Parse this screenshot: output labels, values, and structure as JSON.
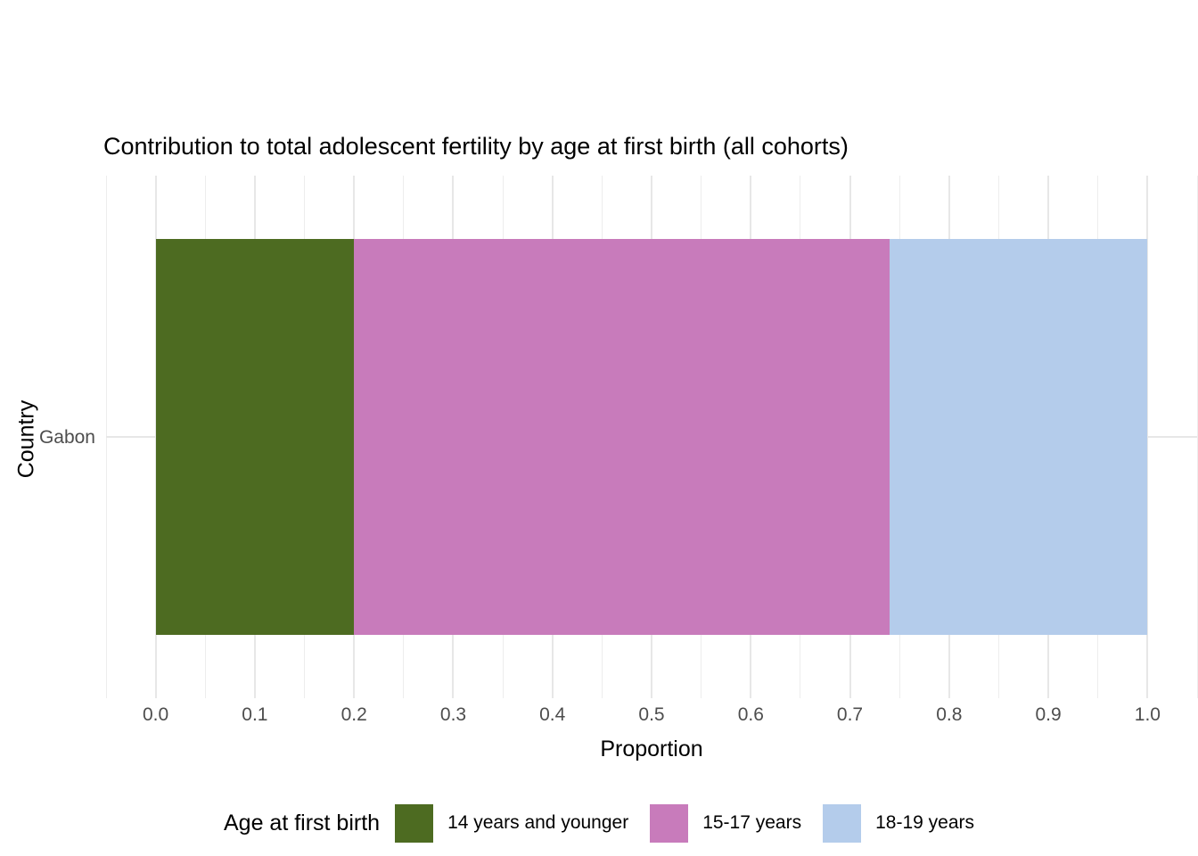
{
  "title": "Contribution to total adolescent fertility by age at first birth (all cohorts)",
  "chart_data": {
    "type": "bar",
    "orientation": "horizontal",
    "stacked": true,
    "title": "Contribution to total adolescent fertility by age at first birth (all cohorts)",
    "categories": [
      "Gabon"
    ],
    "series": [
      {
        "name": "14 years and younger",
        "color": "#4d6b21",
        "values": [
          0.2
        ]
      },
      {
        "name": "15-17 years",
        "color": "#c87bbb",
        "values": [
          0.54
        ]
      },
      {
        "name": "18-19 years",
        "color": "#b4cceb",
        "values": [
          0.26
        ]
      }
    ],
    "xlabel": "Proportion",
    "ylabel": "Country",
    "xlim": [
      -0.05,
      1.05
    ],
    "x_tick_values": [
      0.0,
      0.1,
      0.2,
      0.3,
      0.4,
      0.5,
      0.6,
      0.7,
      0.8,
      0.9,
      1.0
    ],
    "x_tick_labels": [
      "0.0",
      "0.1",
      "0.2",
      "0.3",
      "0.4",
      "0.5",
      "0.6",
      "0.7",
      "0.8",
      "0.9",
      "1.0"
    ],
    "x_minor_tick_values": [
      -0.05,
      0.05,
      0.15,
      0.25,
      0.35,
      0.45,
      0.55,
      0.65,
      0.75,
      0.85,
      0.95,
      1.05
    ],
    "grid": true,
    "legend": {
      "title": "Age at first birth",
      "position": "bottom",
      "entries": [
        "14 years and younger",
        "15-17 years",
        "18-19 years"
      ]
    }
  },
  "colors": {
    "background": "#ffffff",
    "grid_major": "#e7e7e7",
    "grid_minor": "#ededed",
    "tick_text": "#4d4d4d",
    "title_text": "#000000"
  }
}
